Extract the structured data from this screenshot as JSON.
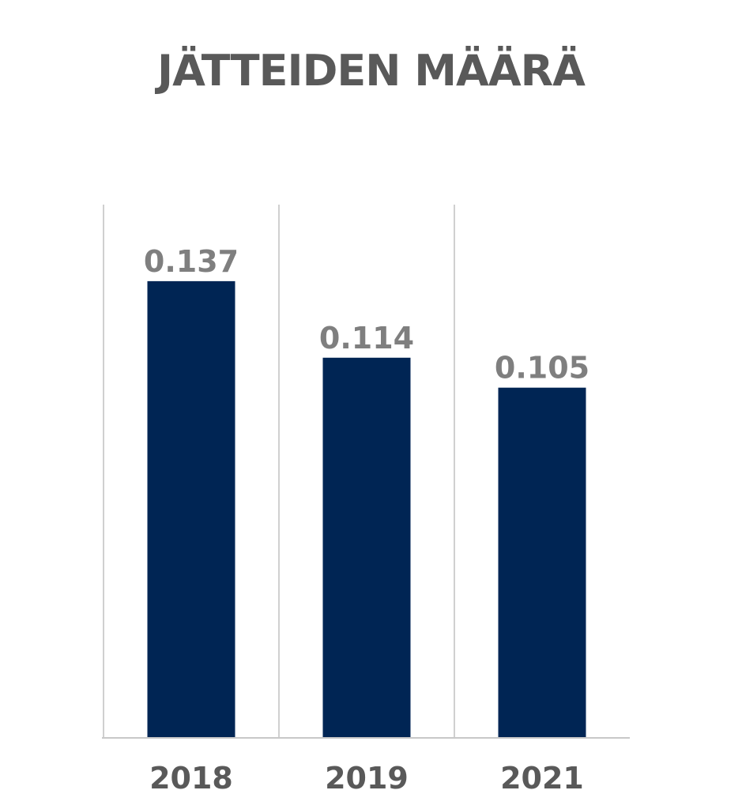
{
  "chart_data": {
    "type": "bar",
    "title": "JÄTTEIDEN MÄÄRÄ",
    "categories": [
      "2018",
      "2019",
      "2021"
    ],
    "values": [
      0.137,
      0.114,
      0.105
    ],
    "data_labels": [
      "0.137",
      "0.114",
      "0.105"
    ],
    "ylim": [
      0,
      0.16
    ],
    "grid": true,
    "legend": "none",
    "colors": {
      "bar": "#002554",
      "title": "#595959",
      "data_label": "#7f7f7f",
      "tick_label": "#595959",
      "grid": "#d0d0d0"
    }
  }
}
